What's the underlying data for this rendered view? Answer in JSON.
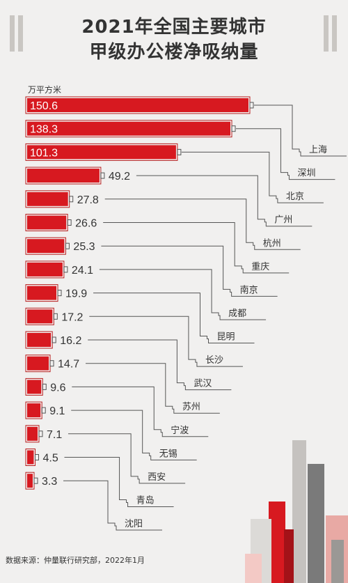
{
  "header": {
    "title_line1": "2021年全国主要城市",
    "title_line2": "甲级办公楼净吸纳量"
  },
  "footer": {
    "source": "数据来源：仲量联行研究部，2022年1月"
  },
  "colors": {
    "bar": "#d71920",
    "bar_outline": "#b71c1c",
    "line": "#555555",
    "text": "#333333"
  },
  "chart_data": {
    "type": "bar",
    "title": "2021年全国主要城市甲级办公楼净吸纳量",
    "unit": "万平方米",
    "orientation": "horizontal",
    "categories": [
      "上海",
      "深圳",
      "北京",
      "广州",
      "杭州",
      "重庆",
      "南京",
      "成都",
      "昆明",
      "长沙",
      "武汉",
      "苏州",
      "宁波",
      "无锡",
      "西安",
      "青岛",
      "沈阳"
    ],
    "values": [
      150.6,
      138.3,
      101.3,
      49.2,
      27.8,
      26.6,
      25.3,
      24.1,
      19.9,
      17.2,
      16.2,
      14.7,
      9.6,
      9.1,
      7.1,
      4.5,
      3.3
    ],
    "value_labels": [
      "150.6",
      "138.3",
      "101.3",
      "49.2",
      "27.8",
      "26.6",
      "25.3",
      "24.1",
      "19.9",
      "17.2",
      "16.2",
      "14.7",
      "9.6",
      "9.1",
      "7.1",
      "4.5",
      "3.3"
    ],
    "xlim": [
      0,
      150.6
    ],
    "grid": false,
    "legend": "none"
  }
}
